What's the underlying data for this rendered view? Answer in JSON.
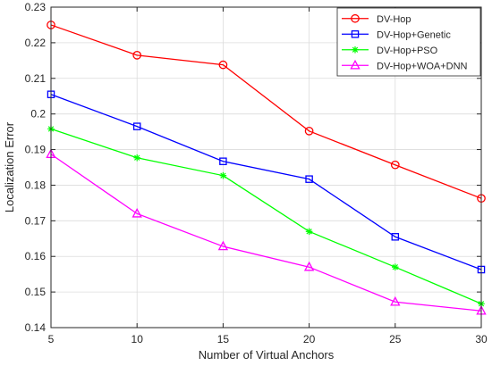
{
  "chart_data": {
    "type": "line",
    "xlabel": "Number of Virtual Anchors",
    "ylabel": "Localization Error",
    "x": [
      5,
      10,
      15,
      20,
      25,
      30
    ],
    "xlim": [
      5,
      30
    ],
    "ylim": [
      0.14,
      0.23
    ],
    "xticks": [
      "5",
      "10",
      "15",
      "20",
      "25",
      "30"
    ],
    "yticks": [
      "0.14",
      "0.15",
      "0.16",
      "0.17",
      "0.18",
      "0.19",
      "0.2",
      "0.21",
      "0.22",
      "0.23"
    ],
    "grid": true,
    "legend_position": "top-right",
    "series": [
      {
        "name": "DV-Hop",
        "color": "#ff0000",
        "marker": "circle",
        "values": [
          0.225,
          0.2165,
          0.2138,
          0.1952,
          0.1857,
          0.1763
        ]
      },
      {
        "name": "DV-Hop+Genetic",
        "color": "#0000ff",
        "marker": "square",
        "values": [
          0.2055,
          0.1965,
          0.1867,
          0.1817,
          0.1655,
          0.1563
        ]
      },
      {
        "name": "DV-Hop+PSO",
        "color": "#00ff00",
        "marker": "asterisk",
        "values": [
          0.1958,
          0.1877,
          0.1827,
          0.167,
          0.157,
          0.1467
        ]
      },
      {
        "name": "DV-Hop+WOA+DNN",
        "color": "#ff00ff",
        "marker": "triangle",
        "values": [
          0.1887,
          0.172,
          0.1628,
          0.157,
          0.1472,
          0.1447
        ]
      }
    ]
  }
}
